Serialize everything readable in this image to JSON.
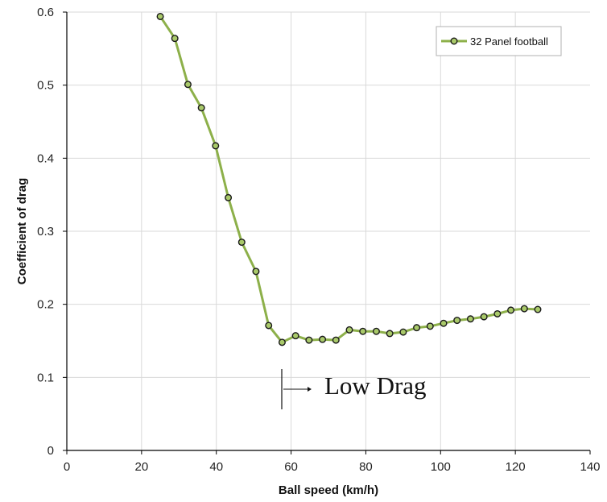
{
  "chart_data": {
    "type": "line",
    "title": "",
    "xlabel": "Ball speed (km/h)",
    "ylabel": "Coefficient of drag",
    "xlim": [
      0,
      140
    ],
    "ylim": [
      0,
      0.6
    ],
    "x_ticks": [
      0,
      20,
      40,
      60,
      80,
      100,
      120,
      140
    ],
    "y_ticks": [
      0,
      0.1,
      0.2,
      0.3,
      0.4,
      0.5,
      0.6
    ],
    "x_tick_labels": [
      "0",
      "20",
      "40",
      "60",
      "80",
      "100",
      "120",
      "140"
    ],
    "y_tick_labels": [
      "0",
      "0.1",
      "0.2",
      "0.3",
      "0.4",
      "0.5",
      "0.6"
    ],
    "grid": true,
    "legend_position": "top-right",
    "series": [
      {
        "name": "32 Panel football",
        "color": "#8db04a",
        "marker_fill": "#a9c96a",
        "marker_edge": "#1a1a1a",
        "x": [
          25.0,
          28.9,
          32.4,
          36.0,
          39.8,
          43.2,
          46.8,
          50.6,
          54.0,
          57.6,
          61.2,
          64.8,
          68.4,
          72.0,
          75.6,
          79.2,
          82.8,
          86.4,
          90.0,
          93.6,
          97.2,
          100.8,
          104.4,
          108.0,
          111.6,
          115.2,
          118.8,
          122.4,
          126.0
        ],
        "y": [
          0.594,
          0.564,
          0.501,
          0.469,
          0.417,
          0.346,
          0.285,
          0.245,
          0.171,
          0.148,
          0.157,
          0.151,
          0.152,
          0.151,
          0.165,
          0.163,
          0.163,
          0.16,
          0.162,
          0.168,
          0.17,
          0.174,
          0.178,
          0.18,
          0.183,
          0.187,
          0.192,
          0.194,
          0.193
        ]
      }
    ],
    "annotations": [
      {
        "text": "Low Drag",
        "x": 58,
        "y": 0.09
      }
    ]
  }
}
